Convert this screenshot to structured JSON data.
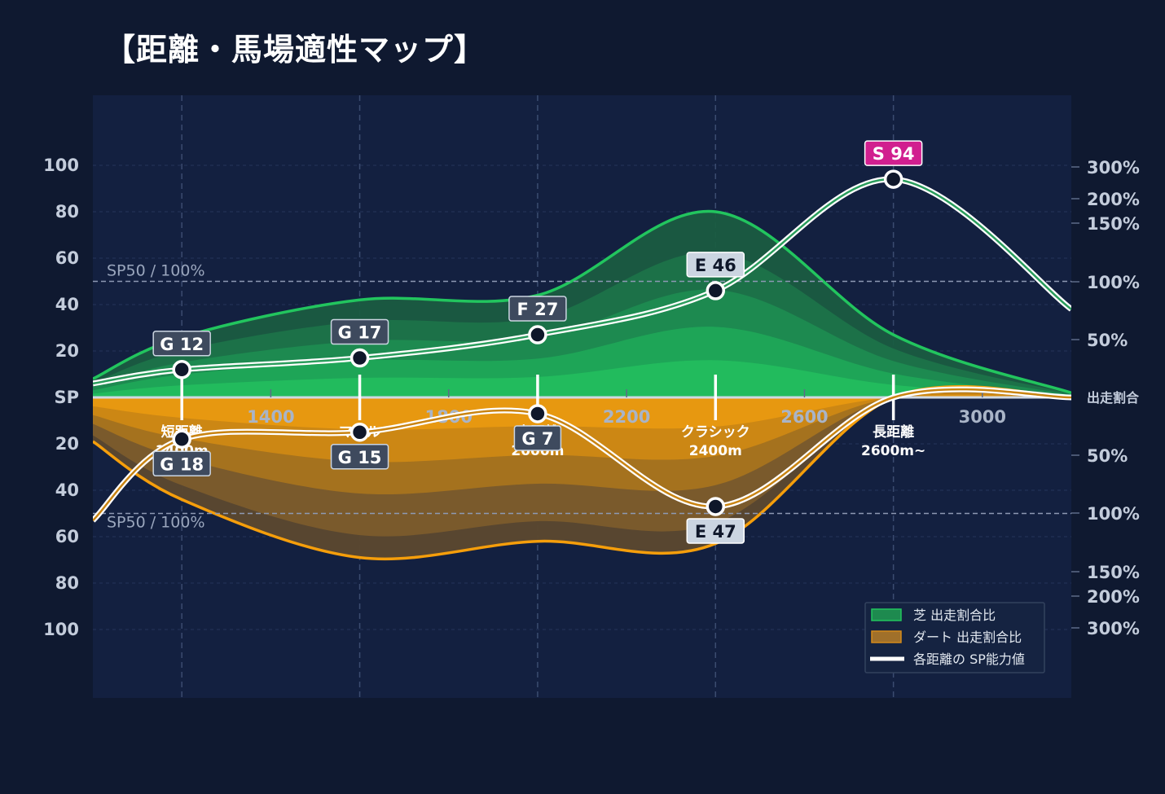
{
  "title": "【距離・馬場適性マップ】",
  "colors": {
    "background": "#0f1930",
    "plot_bg": "#132040",
    "turf": "#22c55e",
    "dirt": "#f59e0b",
    "sp_line": "#ffffff",
    "badge_s": "#d11f8f",
    "badge_e": "#cbd5e1",
    "badge_f": "#3e4a5e",
    "badge_g": "#3e4a5e"
  },
  "chart_data": {
    "type": "area",
    "x_ticks": [
      "1400",
      "1800",
      "2200",
      "2600",
      "3000"
    ],
    "xlim": [
      1000,
      3200
    ],
    "y_left_ticks_top": [
      "100",
      "80",
      "60",
      "40",
      "20"
    ],
    "y_left_center_label": "SP",
    "y_left_ticks_bottom": [
      "20",
      "40",
      "60",
      "80",
      "100"
    ],
    "y_right_ticks_top": [
      "300%",
      "200%",
      "150%",
      "100%",
      "50%"
    ],
    "y_right_center_label": "出走割合",
    "y_right_ticks_bottom": [
      "50%",
      "100%",
      "150%",
      "200%",
      "300%"
    ],
    "ref_label_top": "SP50 / 100%",
    "ref_label_bottom": "SP50 / 100%",
    "ref_value": 50,
    "categories": [
      {
        "name": "短距離",
        "sub": "1400m",
        "x": 1200
      },
      {
        "name": "マイル",
        "sub": "",
        "x": 1600
      },
      {
        "name": "中距離",
        "sub": "2000m",
        "x": 2000
      },
      {
        "name": "クラシック",
        "sub": "2400m",
        "x": 2400
      },
      {
        "name": "長距離",
        "sub": "2600m~",
        "x": 2800
      }
    ],
    "turf_sp": [
      {
        "x": 1200,
        "rank": "G",
        "value": 12
      },
      {
        "x": 1600,
        "rank": "G",
        "value": 17
      },
      {
        "x": 2000,
        "rank": "F",
        "value": 27
      },
      {
        "x": 2400,
        "rank": "E",
        "value": 46
      },
      {
        "x": 2800,
        "rank": "S",
        "value": 94
      }
    ],
    "dirt_sp": [
      {
        "x": 1200,
        "rank": "G",
        "value": 18
      },
      {
        "x": 1600,
        "rank": "G",
        "value": 15
      },
      {
        "x": 2000,
        "rank": "G",
        "value": 7
      },
      {
        "x": 2400,
        "rank": "E",
        "value": 47
      }
    ],
    "turf_share_outline": [
      [
        1000,
        8
      ],
      [
        1200,
        26
      ],
      [
        1600,
        42
      ],
      [
        2000,
        44
      ],
      [
        2400,
        80
      ],
      [
        2800,
        27
      ],
      [
        3200,
        2
      ]
    ],
    "dirt_share_outline": [
      [
        1000,
        19
      ],
      [
        1200,
        44
      ],
      [
        1600,
        69
      ],
      [
        2000,
        62
      ],
      [
        2400,
        63
      ],
      [
        2800,
        0
      ],
      [
        3200,
        0
      ]
    ]
  },
  "legend": {
    "items": [
      {
        "label": "芝 出走割合比",
        "color": "#1e8a4f"
      },
      {
        "label": "ダート 出走割合比",
        "color": "#a0702a"
      },
      {
        "label": "各距離の SP能力値",
        "color": "#ffffff"
      }
    ]
  }
}
